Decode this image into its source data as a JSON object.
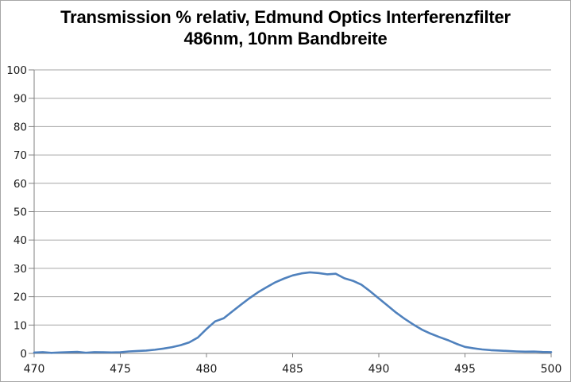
{
  "window": {
    "background": "#ffffff",
    "border_color": "#a6a6a6"
  },
  "chart_data": {
    "type": "line",
    "title": "Transmission % relativ, Edmund Optics Interferenzfilter 486nm, 10nm Bandbreite",
    "title_line1": "Transmission % relativ, Edmund Optics Interferenzfilter",
    "title_line2": "486nm, 10nm Bandbreite",
    "xlabel": "",
    "ylabel": "",
    "xlim": [
      470,
      500
    ],
    "ylim": [
      0,
      100
    ],
    "xticks": [
      470,
      475,
      480,
      485,
      490,
      495,
      500
    ],
    "yticks": [
      0,
      10,
      20,
      30,
      40,
      50,
      60,
      70,
      80,
      90,
      100
    ],
    "grid": "horizontal-only",
    "legend": "none",
    "series": [
      {
        "name": "Transmission % relativ",
        "color": "#4f81bd",
        "x": [
          470.0,
          470.5,
          471.0,
          471.5,
          472.0,
          472.5,
          473.0,
          473.5,
          474.0,
          474.5,
          475.0,
          475.5,
          476.0,
          476.5,
          477.0,
          477.5,
          478.0,
          478.5,
          479.0,
          479.5,
          480.0,
          480.5,
          481.0,
          481.5,
          482.0,
          482.5,
          483.0,
          483.5,
          484.0,
          484.5,
          485.0,
          485.5,
          486.0,
          486.5,
          487.0,
          487.5,
          488.0,
          488.5,
          489.0,
          489.5,
          490.0,
          490.5,
          491.0,
          491.5,
          492.0,
          492.5,
          493.0,
          493.5,
          494.0,
          494.5,
          495.0,
          495.5,
          496.0,
          496.5,
          497.0,
          497.5,
          498.0,
          498.5,
          499.0,
          499.5,
          500.0
        ],
        "values": [
          0.3,
          0.45,
          0.2,
          0.35,
          0.45,
          0.55,
          0.25,
          0.45,
          0.4,
          0.35,
          0.4,
          0.7,
          0.85,
          1.0,
          1.3,
          1.7,
          2.2,
          2.9,
          3.9,
          5.6,
          8.6,
          11.3,
          12.4,
          14.8,
          17.2,
          19.5,
          21.6,
          23.4,
          25.1,
          26.4,
          27.5,
          28.2,
          28.6,
          28.35,
          27.9,
          28.1,
          26.5,
          25.6,
          24.2,
          21.9,
          19.4,
          16.9,
          14.4,
          12.2,
          10.2,
          8.4,
          7.0,
          5.8,
          4.7,
          3.4,
          2.3,
          1.8,
          1.4,
          1.15,
          1.0,
          0.85,
          0.7,
          0.6,
          0.65,
          0.5,
          0.45
        ]
      }
    ],
    "colors": {
      "line": "#4f81bd",
      "gridline": "#a6a6a6",
      "axis": "#808080",
      "tick_label": "#1a1a1a",
      "title": "#000000"
    }
  }
}
